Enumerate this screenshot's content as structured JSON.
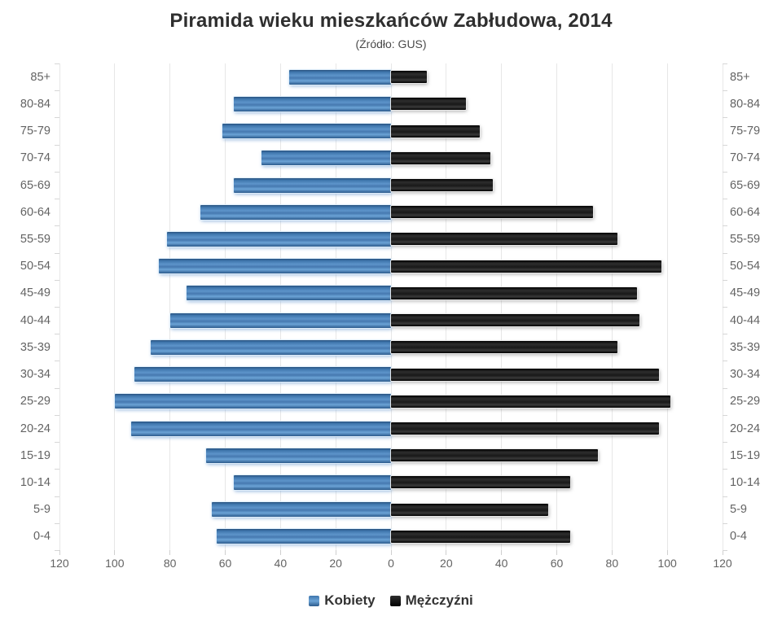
{
  "title": "Piramida wieku mieszkańców Zabłudowa, 2014",
  "subtitle": "(Źródło: GUS)",
  "legend": {
    "items": [
      {
        "label": "Kobiety",
        "color": "#4a7db8"
      },
      {
        "label": "Mężczyźni",
        "color": "#141414"
      }
    ],
    "position": "bottom"
  },
  "colors": {
    "women": "#4a7db8",
    "men": "#141414",
    "grid": "#e7e7e7",
    "axis_text": "#636363",
    "title_text": "#2f2f2f"
  },
  "chart_data": {
    "type": "bar",
    "variant": "population-pyramid",
    "title": "Piramida wieku mieszkańców Zabłudowa, 2014",
    "subtitle": "(Źródło: GUS)",
    "categories": [
      "85+",
      "80-84",
      "75-79",
      "70-74",
      "65-69",
      "60-64",
      "55-59",
      "50-54",
      "45-49",
      "40-44",
      "35-39",
      "30-34",
      "25-29",
      "20-24",
      "15-19",
      "10-14",
      "5-9",
      "0-4"
    ],
    "series": [
      {
        "name": "Kobiety",
        "side": "left",
        "color": "#4a7db8",
        "values": [
          37,
          57,
          61,
          47,
          57,
          69,
          81,
          84,
          74,
          80,
          87,
          93,
          100,
          94,
          67,
          57,
          65,
          63
        ]
      },
      {
        "name": "Mężczyźni",
        "side": "right",
        "color": "#141414",
        "values": [
          13,
          27,
          32,
          36,
          37,
          73,
          82,
          98,
          89,
          90,
          82,
          97,
          101,
          97,
          75,
          65,
          57,
          65
        ]
      }
    ],
    "xlim": [
      -120,
      120
    ],
    "x_ticks": [
      {
        "v": -120,
        "label": "120"
      },
      {
        "v": -100,
        "label": "100"
      },
      {
        "v": -80,
        "label": "80"
      },
      {
        "v": -60,
        "label": "60"
      },
      {
        "v": -40,
        "label": "40"
      },
      {
        "v": -20,
        "label": "20"
      },
      {
        "v": 0,
        "label": "0"
      },
      {
        "v": 20,
        "label": "20"
      },
      {
        "v": 40,
        "label": "40"
      },
      {
        "v": 60,
        "label": "60"
      },
      {
        "v": 80,
        "label": "80"
      },
      {
        "v": 100,
        "label": "100"
      },
      {
        "v": 120,
        "label": "120"
      }
    ],
    "grid": true,
    "legend_position": "bottom"
  }
}
